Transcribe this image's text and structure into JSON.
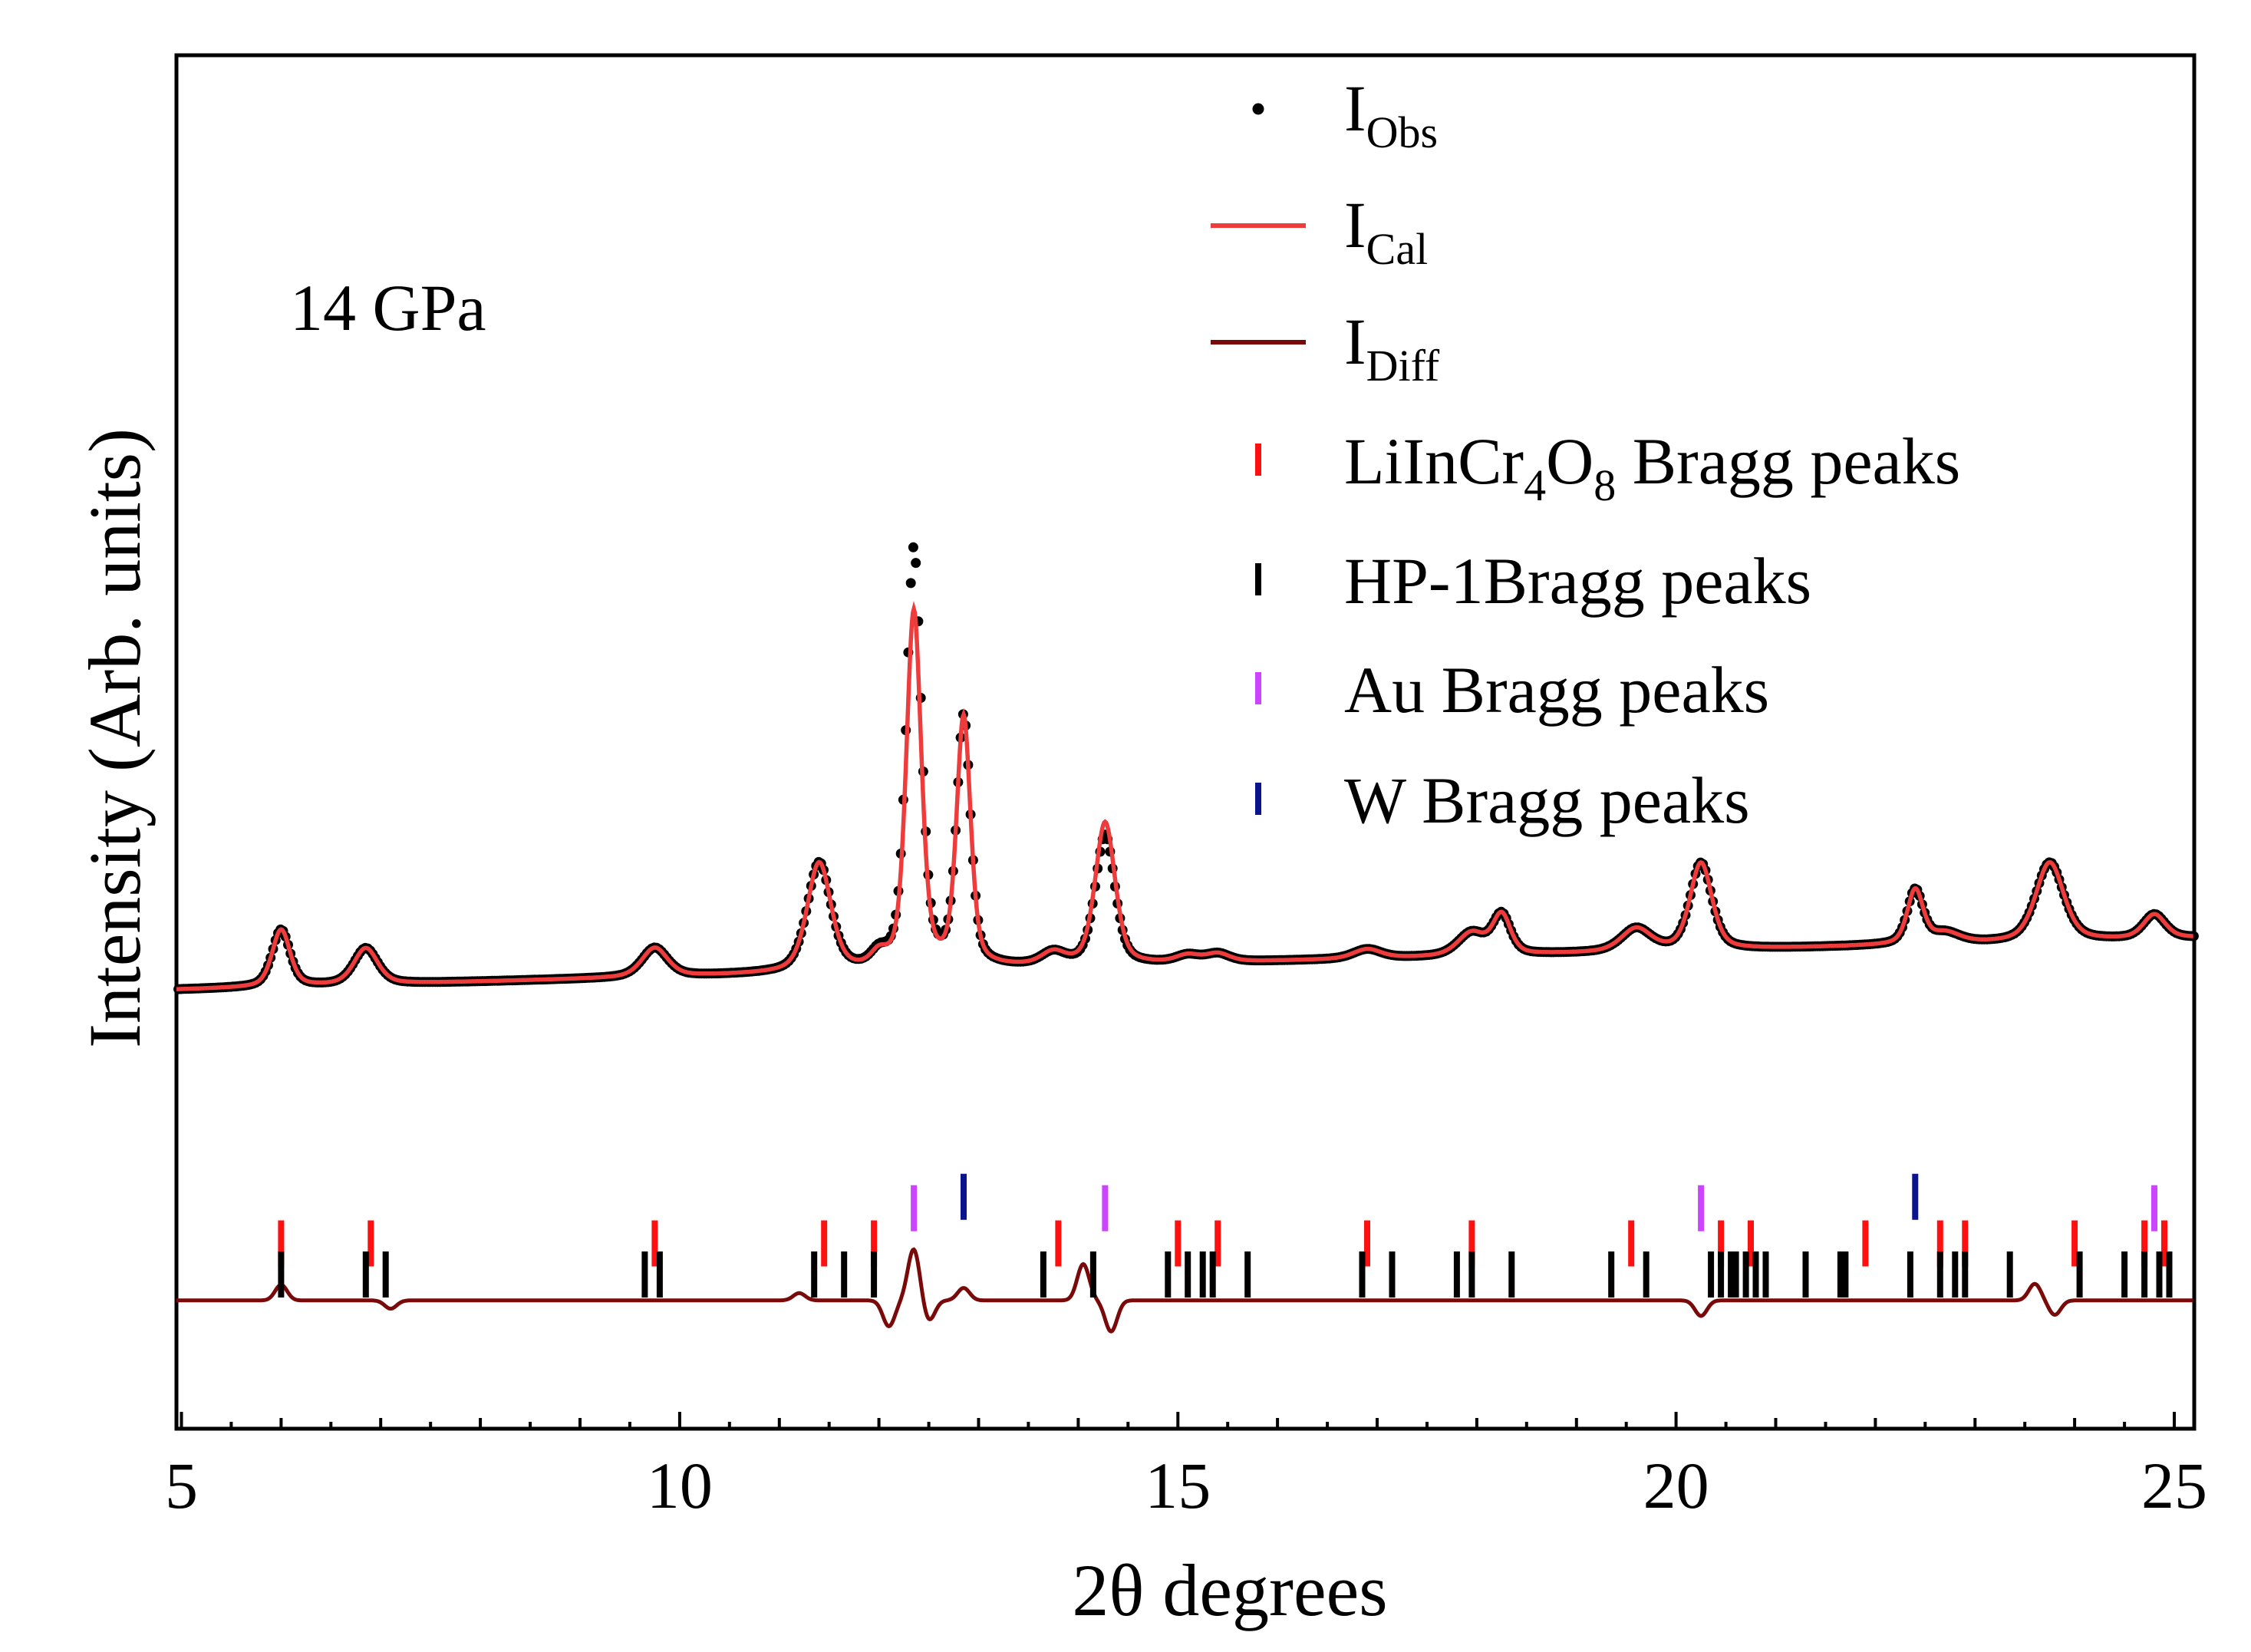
{
  "chart_data": {
    "type": "line",
    "title": "",
    "annotation": "14 GPa",
    "xlabel": "2θ degrees",
    "ylabel": "Intensity (Arb. units)",
    "xlim": [
      4.95,
      25.2
    ],
    "ylim": [
      0,
      100
    ],
    "xticks": [
      5,
      10,
      15,
      20,
      25
    ],
    "grid": false,
    "legend_position": "top-right",
    "legend": [
      {
        "label": "I",
        "sub": "Obs",
        "tail": "",
        "marker": "dot",
        "color": "#000000"
      },
      {
        "label": "I",
        "sub": "Cal",
        "tail": "",
        "marker": "line",
        "color": "#ee3b3b"
      },
      {
        "label": "I",
        "sub": "Diff",
        "tail": "",
        "marker": "line",
        "color": "#7a0a0a"
      },
      {
        "label": "LiInCr",
        "sub": "4",
        "label2": "O",
        "sub2": "8",
        "tail": " Bragg peaks",
        "marker": "tick",
        "color": "#ff1010"
      },
      {
        "label": "HP-1Bragg peaks",
        "marker": "tick",
        "color": "#000000"
      },
      {
        "label": "Au Bragg peaks",
        "marker": "tick",
        "color": "#cc44ff"
      },
      {
        "label": "W Bragg peaks",
        "marker": "tick",
        "color": "#0a148c"
      }
    ],
    "baseline": {
      "start": 21.5,
      "end": 26.5
    },
    "peaks": [
      {
        "x": 6.0,
        "h": 5.5,
        "w": 0.09
      },
      {
        "x": 6.85,
        "h": 3.5,
        "w": 0.12
      },
      {
        "x": 9.75,
        "h": 2.8,
        "w": 0.13
      },
      {
        "x": 11.4,
        "h": 10.5,
        "w": 0.12
      },
      {
        "x": 12.0,
        "h": 1.2,
        "w": 0.08
      },
      {
        "x": 12.35,
        "h": 40.5,
        "w": 0.075
      },
      {
        "x": 12.85,
        "h": 24.0,
        "w": 0.07
      },
      {
        "x": 13.75,
        "h": 1.2,
        "w": 0.12
      },
      {
        "x": 14.27,
        "h": 12.5,
        "w": 0.1
      },
      {
        "x": 15.1,
        "h": 0.7,
        "w": 0.12
      },
      {
        "x": 15.4,
        "h": 0.8,
        "w": 0.12
      },
      {
        "x": 16.9,
        "h": 0.9,
        "w": 0.14
      },
      {
        "x": 17.95,
        "h": 2.2,
        "w": 0.14
      },
      {
        "x": 18.25,
        "h": 3.8,
        "w": 0.09
      },
      {
        "x": 19.6,
        "h": 2.2,
        "w": 0.15
      },
      {
        "x": 20.25,
        "h": 8.4,
        "w": 0.11
      },
      {
        "x": 22.4,
        "h": 5.2,
        "w": 0.08
      },
      {
        "x": 22.7,
        "h": 1.0,
        "w": 0.15
      },
      {
        "x": 23.75,
        "h": 7.6,
        "w": 0.14
      },
      {
        "x": 24.8,
        "h": 2.3,
        "w": 0.11
      }
    ],
    "series": [
      {
        "name": "IObs",
        "style": "dots",
        "color": "#000000",
        "step": 0.025
      },
      {
        "name": "ICal",
        "style": "line",
        "color": "#ee3b3b"
      },
      {
        "name": "IDiff",
        "style": "line",
        "color": "#7a0a0a",
        "level": -8.5
      }
    ],
    "diff_features": [
      {
        "x": 6.0,
        "a": 1.5
      },
      {
        "x": 7.1,
        "a": -0.8
      },
      {
        "x": 11.2,
        "a": 0.7
      },
      {
        "x": 12.1,
        "a": -2.5
      },
      {
        "x": 12.35,
        "a": 5.0
      },
      {
        "x": 12.5,
        "a": -2.0
      },
      {
        "x": 12.85,
        "a": 1.2
      },
      {
        "x": 14.05,
        "a": 3.5
      },
      {
        "x": 14.33,
        "a": -3.0
      },
      {
        "x": 20.25,
        "a": -1.5
      },
      {
        "x": 23.6,
        "a": 1.6
      },
      {
        "x": 23.8,
        "a": -1.4
      }
    ],
    "bragg_rows": [
      {
        "name": "W",
        "color": "#0a148c",
        "level": 1.5,
        "positions": [
          12.85,
          22.4
        ]
      },
      {
        "name": "Au",
        "color": "#cc44ff",
        "level": 0.4,
        "positions": [
          12.35,
          14.27,
          20.25,
          24.8
        ]
      },
      {
        "name": "LiInCr4O8",
        "color": "#ff1010",
        "level": -3.0,
        "positions": [
          6.0,
          6.9,
          9.75,
          11.45,
          11.95,
          13.8,
          15.0,
          15.4,
          16.9,
          17.95,
          19.55,
          20.45,
          20.75,
          21.9,
          22.65,
          22.9,
          24.0,
          24.7,
          24.9
        ]
      },
      {
        "name": "HP-1",
        "color": "#000000",
        "level": -6.0,
        "positions": [
          6.0,
          6.85,
          7.05,
          9.65,
          9.8,
          11.35,
          11.65,
          11.95,
          13.65,
          14.15,
          14.9,
          15.1,
          15.25,
          15.35,
          15.7,
          16.85,
          17.15,
          17.8,
          17.95,
          18.35,
          19.35,
          19.7,
          20.35,
          20.45,
          20.55,
          20.6,
          20.7,
          20.8,
          20.9,
          21.3,
          21.65,
          21.7,
          22.35,
          22.65,
          22.8,
          22.9,
          23.35,
          24.05,
          24.5,
          24.7,
          24.85,
          24.95
        ]
      }
    ]
  }
}
